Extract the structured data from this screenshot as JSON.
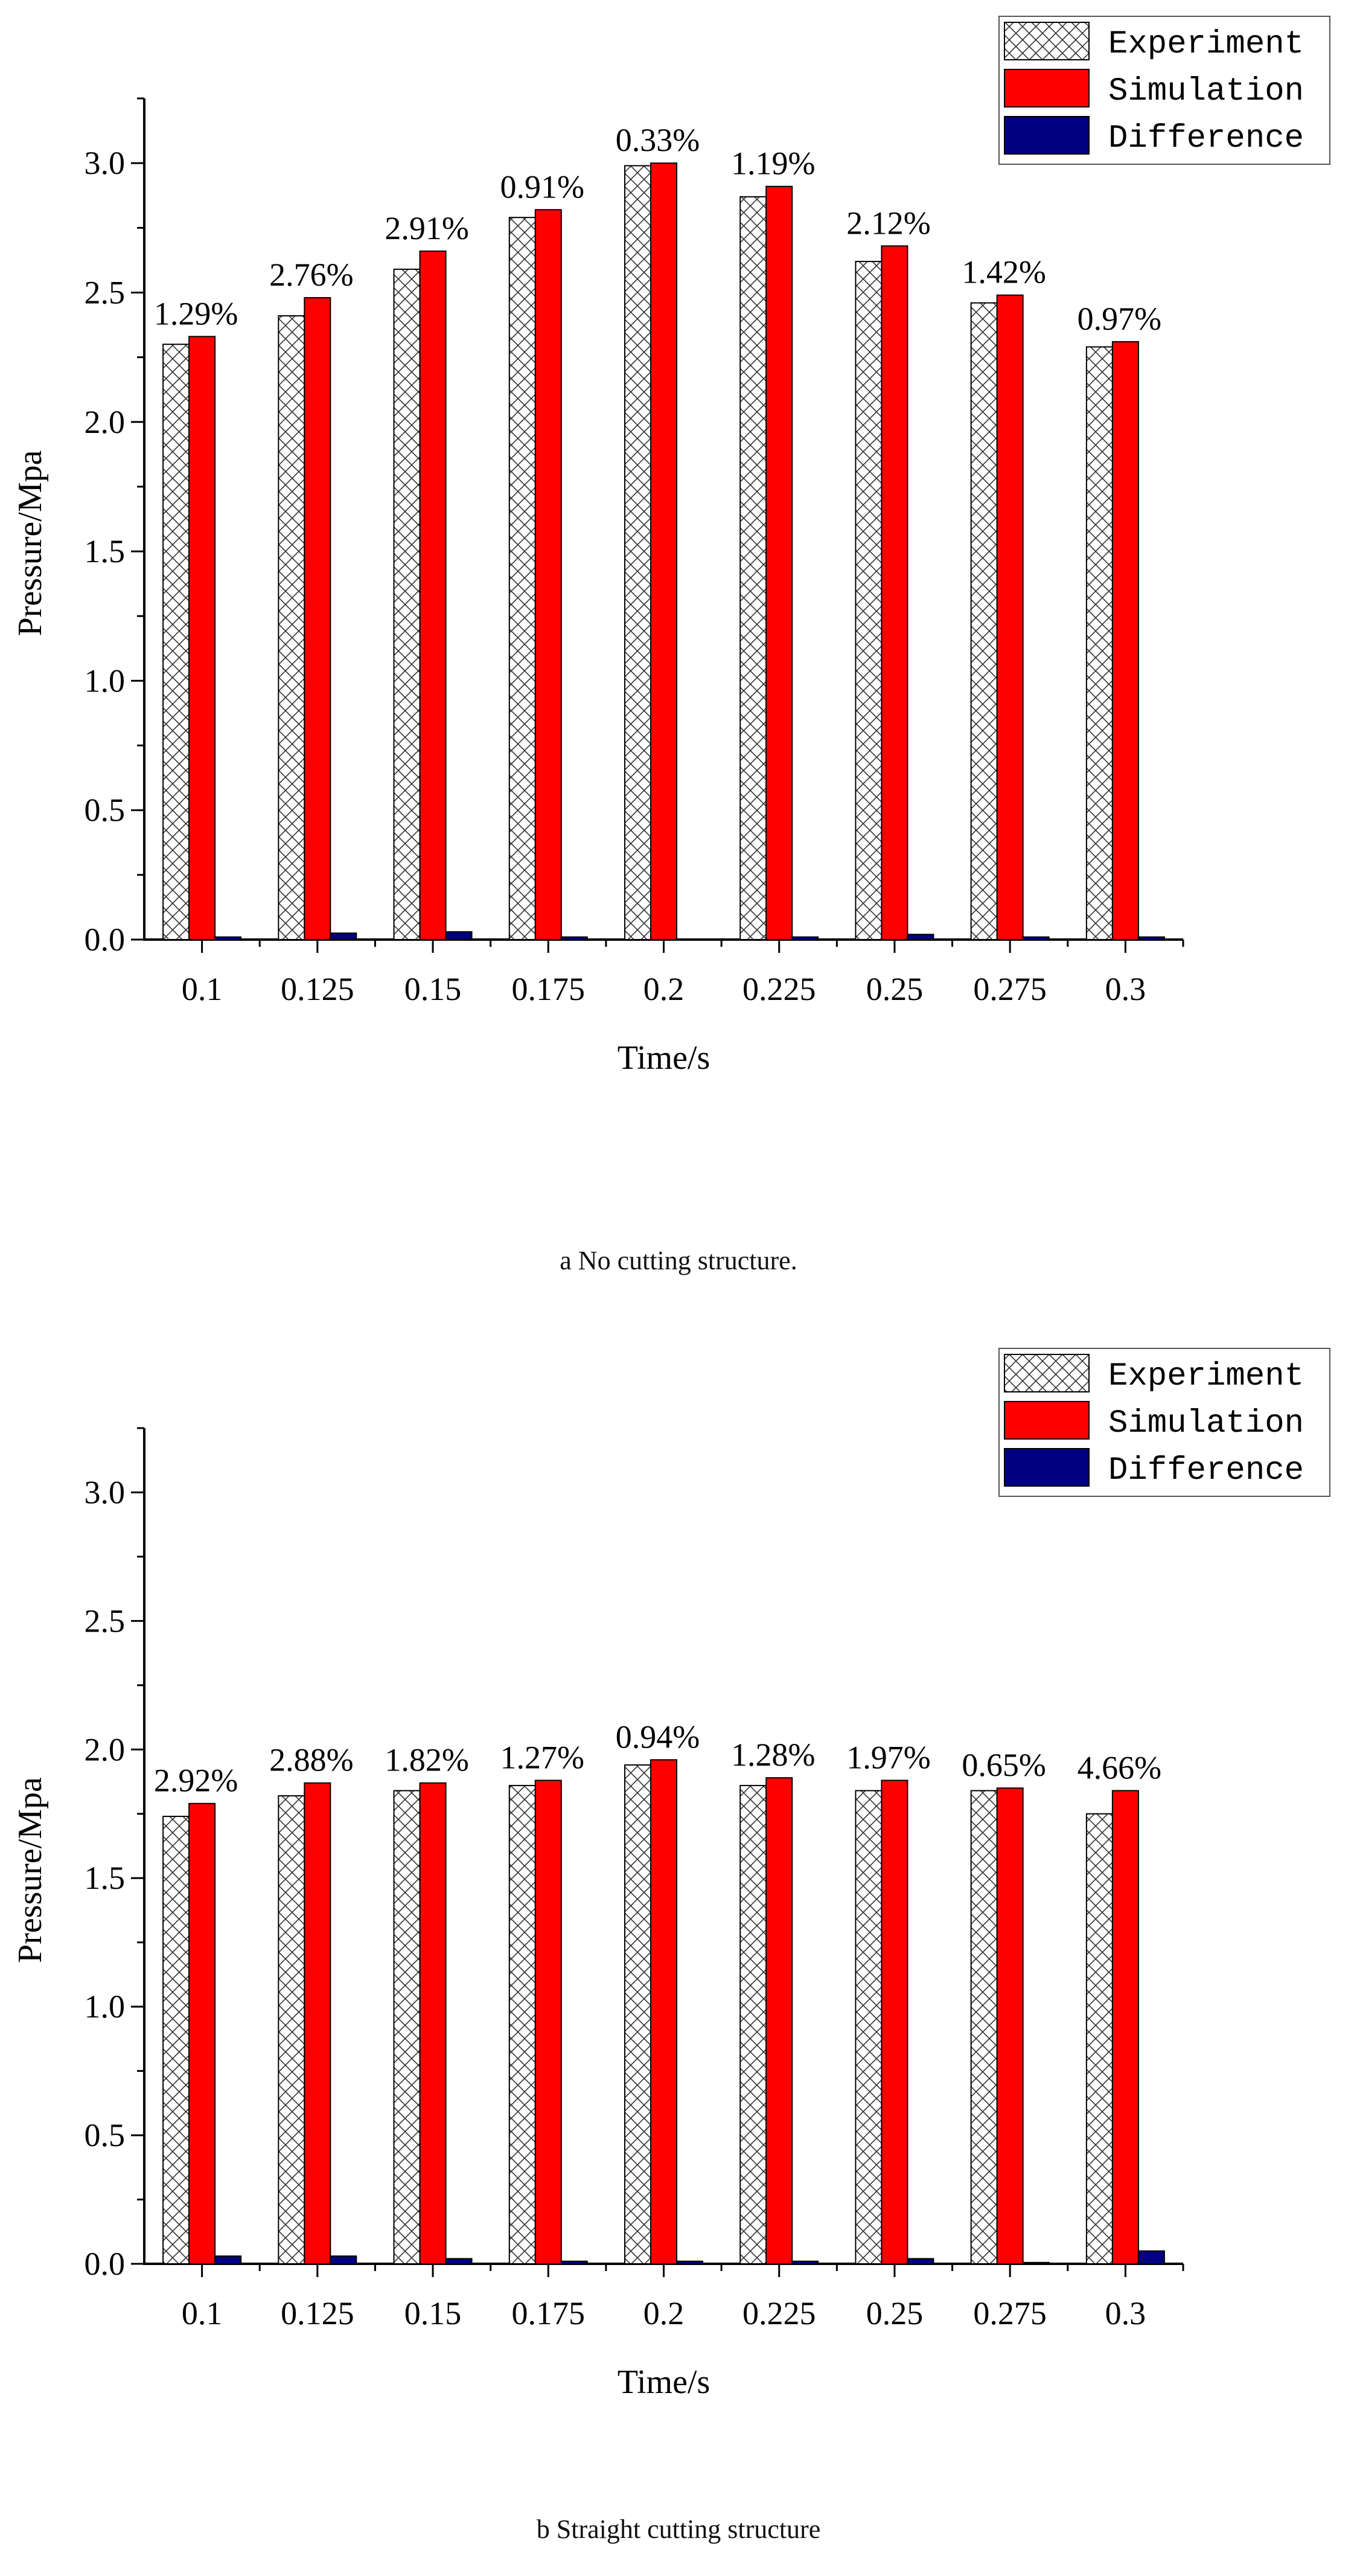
{
  "chart_data": [
    {
      "type": "bar",
      "caption": "a No cutting structure.",
      "xlabel": "Time/s",
      "ylabel": "Pressure/Mpa",
      "ylim": [
        0,
        3.25
      ],
      "yticks": [
        "0.0",
        "0.5",
        "1.0",
        "1.5",
        "2.0",
        "2.5",
        "3.0"
      ],
      "categories": [
        "0.1",
        "0.125",
        "0.15",
        "0.175",
        "0.2",
        "0.225",
        "0.25",
        "0.275",
        "0.3"
      ],
      "legend": {
        "placement": "top-right"
      },
      "series": [
        {
          "name": "Experiment",
          "color": "#ffffff",
          "pattern": "crosshatch",
          "values": [
            2.3,
            2.41,
            2.59,
            2.79,
            2.99,
            2.87,
            2.62,
            2.46,
            2.29
          ]
        },
        {
          "name": "Simulation",
          "color": "#ff0000",
          "values": [
            2.33,
            2.48,
            2.66,
            2.82,
            3.0,
            2.91,
            2.68,
            2.49,
            2.31
          ]
        },
        {
          "name": "Difference",
          "color": "#000080",
          "values": [
            0.01,
            0.025,
            0.03,
            0.01,
            0.0,
            0.01,
            0.02,
            0.01,
            0.01
          ]
        }
      ],
      "data_labels": [
        "1.29%",
        "2.76%",
        "2.91%",
        "0.91%",
        "0.33%",
        "1.19%",
        "2.12%",
        "1.42%",
        "0.97%"
      ]
    },
    {
      "type": "bar",
      "caption": "b Straight cutting structure",
      "xlabel": "Time/s",
      "ylabel": "Pressure/Mpa",
      "ylim": [
        0,
        3.25
      ],
      "yticks": [
        "0.0",
        "0.5",
        "1.0",
        "1.5",
        "2.0",
        "2.5",
        "3.0"
      ],
      "categories": [
        "0.1",
        "0.125",
        "0.15",
        "0.175",
        "0.2",
        "0.225",
        "0.25",
        "0.275",
        "0.3"
      ],
      "legend": {
        "placement": "top-right"
      },
      "series": [
        {
          "name": "Experiment",
          "color": "#ffffff",
          "pattern": "crosshatch",
          "values": [
            1.74,
            1.82,
            1.84,
            1.86,
            1.94,
            1.86,
            1.84,
            1.84,
            1.75
          ]
        },
        {
          "name": "Simulation",
          "color": "#ff0000",
          "values": [
            1.79,
            1.87,
            1.87,
            1.88,
            1.96,
            1.89,
            1.88,
            1.85,
            1.84
          ]
        },
        {
          "name": "Difference",
          "color": "#000080",
          "values": [
            0.03,
            0.03,
            0.02,
            0.01,
            0.01,
            0.01,
            0.02,
            0.005,
            0.05
          ]
        }
      ],
      "data_labels": [
        "2.92%",
        "2.88%",
        "1.82%",
        "1.27%",
        "0.94%",
        "1.28%",
        "1.97%",
        "0.65%",
        "4.66%"
      ]
    }
  ]
}
